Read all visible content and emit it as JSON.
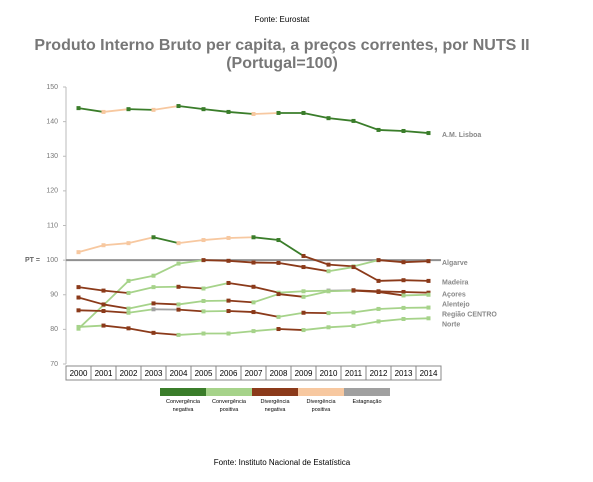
{
  "chart_data": {
    "type": "line",
    "source_top": "Fonte: Eurostat",
    "title": "Produto Interno Bruto per capita, a preços correntes, por NUTS II",
    "subtitle": "(Portugal=100)",
    "source_bottom": "Fonte: Instituto Nacional de Estatística",
    "categories": [
      "2000",
      "2001",
      "2002",
      "2003",
      "2004",
      "2005",
      "2006",
      "2007",
      "2008",
      "2009",
      "2010",
      "2011",
      "2012",
      "2013",
      "2014"
    ],
    "ylim": [
      70,
      150
    ],
    "yticks": [
      70,
      80,
      90,
      100,
      110,
      120,
      130,
      140,
      150
    ],
    "reference": {
      "label": "PT =",
      "value": 100,
      "color": "#909090"
    },
    "legend": [
      {
        "name": "Convergência negativa",
        "color": "#3a7d2a"
      },
      {
        "name": "Convergência positiva",
        "color": "#a6d38a"
      },
      {
        "name": "Divergência negativa",
        "color": "#8b3a1a"
      },
      {
        "name": "Divergência positiva",
        "color": "#f7c8a0"
      },
      {
        "name": "Estagnação",
        "color": "#a0a0a0"
      }
    ],
    "series": [
      {
        "name": "A.M. Lisboa",
        "values": [
          143.9,
          142.8,
          143.6,
          143.4,
          144.5,
          143.6,
          142.8,
          142.2,
          142.5,
          142.5,
          141.0,
          140.2,
          137.6,
          137.3,
          136.7
        ],
        "segment_colors": [
          "#3a7d2a",
          "#f7c8a0",
          "#3a7d2a",
          "#f7c8a0",
          "#3a7d2a",
          "#3a7d2a",
          "#3a7d2a",
          "#f7c8a0",
          "#3a7d2a",
          "#3a7d2a",
          "#3a7d2a",
          "#3a7d2a",
          "#3a7d2a",
          "#3a7d2a"
        ]
      },
      {
        "name": "Algarve",
        "values": [
          102.3,
          104.3,
          104.9,
          106.6,
          104.9,
          105.8,
          106.4,
          106.6,
          105.8,
          101.2,
          98.7,
          98.2,
          100.0,
          99.4,
          99.7
        ],
        "segment_colors": [
          "#f7c8a0",
          "#f7c8a0",
          "#f7c8a0",
          "#3a7d2a",
          "#f7c8a0",
          "#f7c8a0",
          "#f7c8a0",
          "#3a7d2a",
          "#3a7d2a",
          "#8b3a1a",
          "#8b3a1a",
          "#a6d38a",
          "#8b3a1a",
          "#8b3a1a"
        ]
      },
      {
        "name": "Madeira",
        "values": [
          80.2,
          87.0,
          94.0,
          95.5,
          99.0,
          100.0,
          99.8,
          99.3,
          99.2,
          98.0,
          96.8,
          98.0,
          94.0,
          94.2,
          94.0
        ],
        "segment_colors": [
          "#a6d38a",
          "#a6d38a",
          "#a6d38a",
          "#a6d38a",
          "#a6d38a",
          "#8b3a1a",
          "#8b3a1a",
          "#8b3a1a",
          "#8b3a1a",
          "#8b3a1a",
          "#a6d38a",
          "#8b3a1a",
          "#8b3a1a",
          "#8b3a1a"
        ]
      },
      {
        "name": "Açores",
        "values": [
          92.2,
          91.2,
          90.5,
          92.2,
          92.3,
          91.8,
          93.4,
          92.3,
          90.6,
          91.0,
          91.2,
          91.3,
          91.0,
          90.8,
          90.6
        ],
        "segment_colors": [
          "#8b3a1a",
          "#8b3a1a",
          "#a6d38a",
          "#a6d38a",
          "#8b3a1a",
          "#a6d38a",
          "#8b3a1a",
          "#8b3a1a",
          "#a6d38a",
          "#a6d38a",
          "#a0a0a0",
          "#8b3a1a",
          "#8b3a1a",
          "#8b3a1a"
        ]
      },
      {
        "name": "Alentejo",
        "values": [
          89.2,
          87.2,
          86.0,
          87.5,
          87.2,
          88.2,
          88.3,
          87.8,
          90.2,
          89.4,
          91.0,
          91.2,
          90.8,
          89.8,
          90.0
        ],
        "segment_colors": [
          "#8b3a1a",
          "#8b3a1a",
          "#a6d38a",
          "#8b3a1a",
          "#a6d38a",
          "#a6d38a",
          "#8b3a1a",
          "#a6d38a",
          "#8b3a1a",
          "#a6d38a",
          "#a6d38a",
          "#8b3a1a",
          "#8b3a1a",
          "#a6d38a"
        ]
      },
      {
        "name": "Região CENTRO",
        "values": [
          85.5,
          85.3,
          84.8,
          85.8,
          85.7,
          85.2,
          85.3,
          85.0,
          83.6,
          84.8,
          84.7,
          84.9,
          85.9,
          86.2,
          86.3
        ],
        "segment_colors": [
          "#8b3a1a",
          "#8b3a1a",
          "#a6d38a",
          "#a0a0a0",
          "#8b3a1a",
          "#a6d38a",
          "#8b3a1a",
          "#8b3a1a",
          "#a6d38a",
          "#8b3a1a",
          "#a6d38a",
          "#a6d38a",
          "#a6d38a",
          "#a6d38a"
        ]
      },
      {
        "name": "Norte",
        "values": [
          80.7,
          81.1,
          80.3,
          79.0,
          78.4,
          78.8,
          78.8,
          79.5,
          80.1,
          79.8,
          80.6,
          81.0,
          82.3,
          83.0,
          83.2
        ],
        "segment_colors": [
          "#a6d38a",
          "#8b3a1a",
          "#8b3a1a",
          "#8b3a1a",
          "#a6d38a",
          "#a6d38a",
          "#a6d38a",
          "#a6d38a",
          "#8b3a1a",
          "#a6d38a",
          "#a6d38a",
          "#a6d38a",
          "#a6d38a",
          "#a6d38a"
        ]
      }
    ]
  }
}
